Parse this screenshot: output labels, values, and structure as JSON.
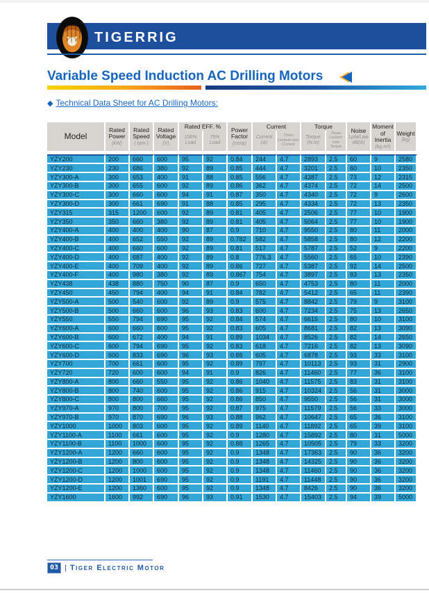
{
  "brand": "TIGERRIG",
  "title": "Variable Speed Induction AC Drilling Motors",
  "section_heading": "Technical Data Sheet for AC Drilling Motors:",
  "icons": {
    "diamond_bullet": "◆"
  },
  "colors": {
    "banner_blue": "#1E4F9E",
    "title_blue": "#1565BF",
    "row_cyan": "#31A6D7",
    "header_gray": "#D7D3CF",
    "accent_orange": "#F5A623"
  },
  "footer": {
    "page_number": "03",
    "separator": "|",
    "company": "Tiger Electric Motor"
  },
  "table": {
    "header": {
      "model": "Model",
      "rated_power": "Rated Power",
      "rated_power_unit": "(kW)",
      "rated_speed": "Rated Speed",
      "rated_speed_unit": "( rpm )",
      "rated_voltage": "Rated Voltage",
      "rated_voltage_unit": "(V)",
      "rated_eff": "Rated EFF. %",
      "load100": "100% Load",
      "load75": "75% Load",
      "power_factor": "Power Factor",
      "power_factor_unit": "(cosφ)",
      "current_group": "Current",
      "current": "Current",
      "current_unit": "(A)",
      "times_lr_current": "Times Locked-rotor Current",
      "torque_group": "Torque",
      "torque": "Torque",
      "torque_unit": "(N.m)",
      "times_lr_torque": "Times Locked-rotor Torque",
      "noise": "Noise",
      "noise_unit": "Lpfa/Lwa dB(A)",
      "moment": "Moment of Inertia",
      "moment_unit": "(kg.m²)",
      "weight": "Weight",
      "weight_unit": "(kg)"
    },
    "rows": [
      [
        "YZY200",
        "200",
        "660",
        "600",
        "95",
        "92",
        "0.84",
        "244",
        "4.7",
        "2893",
        "2.5",
        "60",
        "9",
        "2580"
      ],
      [
        "YZY230",
        "230",
        "686",
        "380",
        "92",
        "89",
        "0.85",
        "444",
        "4.7",
        "3201",
        "2.5",
        "60",
        "10",
        "2350"
      ],
      [
        "YZY300-A",
        "300",
        "653",
        "400",
        "91",
        "88",
        "0.85",
        "556",
        "4.7",
        "4387",
        "2.5",
        "73",
        "12",
        "2315"
      ],
      [
        "YZY300-B",
        "300",
        "655",
        "600",
        "92",
        "89",
        "0.86",
        "362",
        "4.7",
        "4374",
        "2.5",
        "72",
        "14",
        "2500"
      ],
      [
        "YZY300-C",
        "300",
        "660",
        "600",
        "94",
        "91",
        "0.87",
        "350",
        "4.7",
        "4340",
        "2.5",
        "72",
        "9",
        "2600"
      ],
      [
        "YZY300-D",
        "300",
        "661",
        "690",
        "91",
        "88",
        "0.85",
        "295",
        "4.7",
        "4334",
        "2.5",
        "72",
        "13",
        "2350"
      ],
      [
        "YZY315",
        "315",
        "1200",
        "600",
        "92",
        "89",
        "0.81",
        "405",
        "4.7",
        "2506",
        "2.5",
        "77",
        "10",
        "1900"
      ],
      [
        "YZY350",
        "350",
        "660",
        "380",
        "92",
        "89",
        "0.81",
        "405",
        "4.7",
        "5064",
        "2.5",
        "77",
        "10",
        "1900"
      ],
      [
        "YZY400-A",
        "400",
        "400",
        "400",
        "90",
        "87",
        "0.9",
        "710",
        "4.7",
        "9550",
        "2.5",
        "80",
        "11",
        "2000"
      ],
      [
        "YZY400-B",
        "400",
        "652",
        "550",
        "92",
        "89",
        "0.782",
        "582",
        "4.7",
        "5858",
        "2.5",
        "80",
        "12",
        "2200"
      ],
      [
        "YZY400-C",
        "400",
        "660",
        "600",
        "92",
        "89",
        "0.81",
        "517",
        "4.7",
        "5787",
        "2.5",
        "52",
        "9",
        "2200"
      ],
      [
        "YZY400-D",
        "400",
        "687",
        "400",
        "92",
        "89",
        "0.8",
        "776.3",
        "4.7",
        "5560",
        "2.5",
        "65",
        "10",
        "2390"
      ],
      [
        "YZY400-E",
        "400",
        "709",
        "400",
        "92",
        "89",
        "0.86",
        "727",
        "4.7",
        "5387",
        "2.5",
        "92",
        "14",
        "2500"
      ],
      [
        "YZY400-F",
        "400",
        "980",
        "380",
        "92",
        "89",
        "0.867",
        "754",
        "4.7",
        "3897",
        "2.5",
        "83",
        "13",
        "2350"
      ],
      [
        "YZY438",
        "438",
        "880",
        "750",
        "90",
        "87",
        "0.9",
        "650",
        "4.7",
        "4753",
        "2.5",
        "80",
        "11",
        "2000"
      ],
      [
        "YZY450",
        "450",
        "794",
        "400",
        "94",
        "91",
        "0.84",
        "782",
        "4.7",
        "5412",
        "2.5",
        "65",
        "11",
        "2390"
      ],
      [
        "YZY500-A",
        "500",
        "540",
        "600",
        "92",
        "89",
        "0.9",
        "575",
        "4.7",
        "8842",
        "2.5",
        "79",
        "9",
        "3100"
      ],
      [
        "YZY500-B",
        "500",
        "660",
        "600",
        "96",
        "93",
        "0.83",
        "600",
        "4.7",
        "7234",
        "2.5",
        "75",
        "13",
        "2650"
      ],
      [
        "YZY550",
        "550",
        "794",
        "690",
        "95",
        "92",
        "0.84",
        "574",
        "4.7",
        "6615",
        "2.5",
        "80",
        "10",
        "3100"
      ],
      [
        "YZY600-A",
        "600",
        "660",
        "600",
        "95",
        "92",
        "0.83",
        "605",
        "4.7",
        "8681",
        "2.5",
        "82",
        "13",
        "3090"
      ],
      [
        "YZY600-B",
        "600",
        "672",
        "400",
        "94",
        "91",
        "0.89",
        "1034",
        "4.7",
        "8526",
        "2.5",
        "82",
        "14",
        "2650"
      ],
      [
        "YZY600-C",
        "600",
        "794",
        "690",
        "95",
        "92",
        "0.83",
        "618",
        "4.7",
        "7216",
        "2.5",
        "82",
        "13",
        "3090"
      ],
      [
        "YZY600-D",
        "600",
        "833",
        "690",
        "96",
        "93",
        "0.88",
        "605",
        "4.7",
        "6878",
        "2.5",
        "93",
        "33",
        "3100"
      ],
      [
        "YZY700",
        "700",
        "661",
        "600",
        "95",
        "92",
        "0.89",
        "797",
        "4.7",
        "10113",
        "2.5",
        "93",
        "31",
        "2900"
      ],
      [
        "YZY720",
        "720",
        "600",
        "600",
        "94",
        "91",
        "0.9",
        "826",
        "4.7",
        "11460",
        "2.5",
        "77",
        "36",
        "3100"
      ],
      [
        "YZY800-A",
        "800",
        "660",
        "550",
        "95",
        "92",
        "0.86",
        "1040",
        "4.7",
        "11575",
        "2.5",
        "83",
        "31",
        "3100"
      ],
      [
        "YZY800-B",
        "800",
        "740",
        "600",
        "95",
        "92",
        "0.86",
        "915",
        "4.7",
        "10324",
        "2.5",
        "56",
        "31",
        "3000"
      ],
      [
        "YZY800-C",
        "800",
        "800",
        "660",
        "95",
        "92",
        "0.86",
        "850",
        "4.7",
        "9550",
        "2.5",
        "56",
        "31",
        "3000"
      ],
      [
        "YZY970-A",
        "970",
        "800",
        "700",
        "95",
        "92",
        "0.87",
        "975",
        "4.7",
        "11579",
        "2.5",
        "56",
        "33",
        "3000"
      ],
      [
        "YZY970-B",
        "970",
        "870",
        "690",
        "96",
        "93",
        "0.88",
        "962",
        "4.7",
        "10647",
        "2.5",
        "65",
        "36",
        "3100"
      ],
      [
        "YZY1000",
        "1000",
        "803",
        "600",
        "95",
        "92",
        "0.89",
        "1140",
        "4.7",
        "11892",
        "2.5",
        "65",
        "39",
        "3100"
      ],
      [
        "YZY1100-A",
        "1100",
        "661",
        "600",
        "95",
        "92",
        "0.9",
        "1280",
        "4.7",
        "15892",
        "2.5",
        "80",
        "31",
        "5000"
      ],
      [
        "YZY1100-B",
        "1100",
        "1000",
        "600",
        "95",
        "92",
        "0.88",
        "1265",
        "4.7",
        "10505",
        "2.5",
        "79",
        "33",
        "3200"
      ],
      [
        "YZY1200-A",
        "1200",
        "660",
        "600",
        "95",
        "92",
        "0.9",
        "1348",
        "4.7",
        "17363",
        "2.5",
        "90",
        "36",
        "3200"
      ],
      [
        "YZY1200-B",
        "1200",
        "800",
        "600",
        "95",
        "92",
        "0.9",
        "1348",
        "4.7",
        "14325",
        "2.5",
        "90",
        "36",
        "3200"
      ],
      [
        "YZY1200-C",
        "1200",
        "1000",
        "600",
        "95",
        "92",
        "0.9",
        "1348",
        "4.7",
        "11460",
        "2.5",
        "90",
        "36",
        "3200"
      ],
      [
        "YZY1200-D",
        "1200",
        "1001",
        "690",
        "95",
        "92",
        "0.9",
        "1191",
        "4.7",
        "11448",
        "2.5",
        "90",
        "36",
        "3200"
      ],
      [
        "YZY1200-E",
        "1200",
        "1360",
        "600",
        "95",
        "92",
        "0.9",
        "1348",
        "4.7",
        "8426",
        "2.5",
        "90",
        "36",
        "3200"
      ],
      [
        "YZY1600",
        "1600",
        "992",
        "690",
        "96",
        "93",
        "0.91",
        "1530",
        "4.7",
        "15403",
        "2.5",
        "94",
        "39",
        "5000"
      ]
    ]
  }
}
